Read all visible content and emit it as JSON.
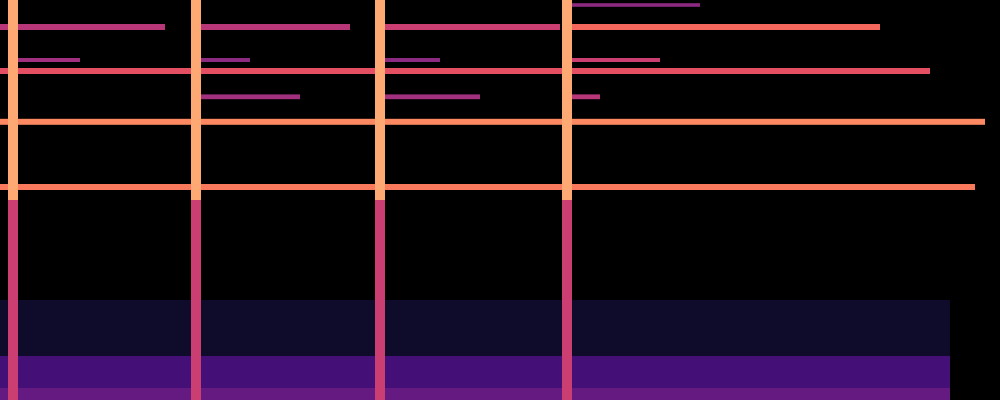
{
  "chart_data": {
    "type": "spectrogram",
    "xlim": [
      0,
      100
    ],
    "ylim": [
      0,
      100
    ],
    "tick_labels": false,
    "color": "magma",
    "color_range": [
      0,
      1
    ],
    "cells": [
      {
        "x1": 0,
        "x2": 95,
        "y1": 0,
        "y2": 25,
        "value": 0.08
      },
      {
        "x1": 0,
        "x2": 95,
        "y1": 0,
        "y2": 11,
        "value": 0.22
      },
      {
        "x1": 0,
        "x2": 95,
        "y1": 0,
        "y2": 3,
        "value": 0.3
      },
      {
        "x1": 0,
        "x2": 97.5,
        "y1": 52.5,
        "y2": 54.0,
        "value": 0.72
      },
      {
        "x1": 0,
        "x2": 98.5,
        "y1": 68.8,
        "y2": 70.3,
        "value": 0.75
      },
      {
        "x1": 0,
        "x2": 93,
        "y1": 81.5,
        "y2": 83.0,
        "value": 0.62
      },
      {
        "x1": 0,
        "x2": 16.5,
        "y1": 92.5,
        "y2": 94.0,
        "value": 0.5
      },
      {
        "x1": 19.6,
        "x2": 35,
        "y1": 92.5,
        "y2": 94.0,
        "value": 0.5
      },
      {
        "x1": 38,
        "x2": 56,
        "y1": 92.5,
        "y2": 94.0,
        "value": 0.55
      },
      {
        "x1": 56.7,
        "x2": 88,
        "y1": 92.5,
        "y2": 94.0,
        "value": 0.68
      },
      {
        "x1": 19.6,
        "x2": 30,
        "y1": 75.2,
        "y2": 76.4,
        "value": 0.45
      },
      {
        "x1": 38,
        "x2": 48,
        "y1": 75.2,
        "y2": 76.4,
        "value": 0.45
      },
      {
        "x1": 56.7,
        "x2": 60,
        "y1": 75.2,
        "y2": 76.4,
        "value": 0.5
      },
      {
        "x1": 1.3,
        "x2": 8,
        "y1": 84.5,
        "y2": 85.5,
        "value": 0.45
      },
      {
        "x1": 19.6,
        "x2": 25,
        "y1": 84.5,
        "y2": 85.5,
        "value": 0.4
      },
      {
        "x1": 38,
        "x2": 44,
        "y1": 84.5,
        "y2": 85.5,
        "value": 0.4
      },
      {
        "x1": 56.7,
        "x2": 66,
        "y1": 84.5,
        "y2": 85.5,
        "value": 0.55
      },
      {
        "x1": 56.7,
        "x2": 70,
        "y1": 98.3,
        "y2": 99.2,
        "value": 0.4
      },
      {
        "x1": 0.8,
        "x2": 1.8,
        "y1": 0,
        "y2": 50,
        "value": 0.55
      },
      {
        "x1": 0.8,
        "x2": 1.8,
        "y1": 50,
        "y2": 100,
        "value": 0.82
      },
      {
        "x1": 19.1,
        "x2": 20.1,
        "y1": 0,
        "y2": 50,
        "value": 0.55
      },
      {
        "x1": 19.1,
        "x2": 20.1,
        "y1": 50,
        "y2": 100,
        "value": 0.82
      },
      {
        "x1": 37.5,
        "x2": 38.5,
        "y1": 0,
        "y2": 50,
        "value": 0.55
      },
      {
        "x1": 37.5,
        "x2": 38.5,
        "y1": 50,
        "y2": 100,
        "value": 0.82
      },
      {
        "x1": 56.2,
        "x2": 57.2,
        "y1": 0,
        "y2": 50,
        "value": 0.55
      },
      {
        "x1": 56.2,
        "x2": 57.2,
        "y1": 50,
        "y2": 100,
        "value": 0.82
      }
    ]
  }
}
